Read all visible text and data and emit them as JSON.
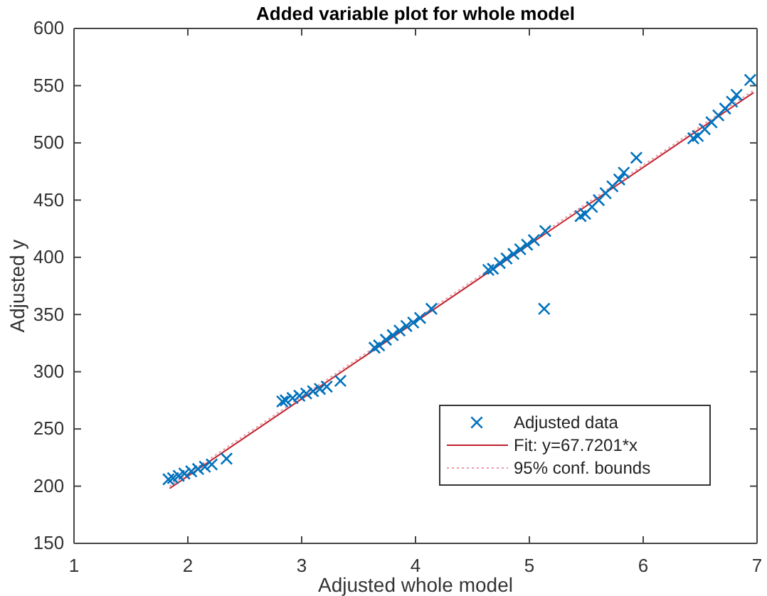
{
  "chart_data": {
    "type": "scatter",
    "title": "Added variable plot for whole model",
    "xlabel": "Adjusted whole model",
    "ylabel": "Adjusted y",
    "xlim": [
      1,
      7
    ],
    "xticks": [
      1,
      2,
      3,
      4,
      5,
      6,
      7
    ],
    "ylim": [
      150,
      600
    ],
    "yticks": [
      150,
      200,
      250,
      300,
      350,
      400,
      450,
      500,
      550,
      600
    ],
    "grid": false,
    "legend": "bottom right",
    "marker": "cross",
    "series": [
      {
        "name": "Adjusted data",
        "color": "#0072bd",
        "x": [
          1.83,
          1.87,
          1.92,
          1.97,
          2.03,
          2.09,
          2.15,
          2.21,
          2.34,
          2.83,
          2.86,
          2.92,
          2.98,
          3.04,
          3.1,
          3.16,
          3.22,
          3.34,
          3.64,
          3.68,
          3.74,
          3.8,
          3.86,
          3.92,
          3.98,
          4.04,
          4.14,
          4.64,
          4.68,
          4.74,
          4.8,
          4.86,
          4.92,
          4.98,
          5.04,
          5.14,
          5.13,
          5.45,
          5.49,
          5.55,
          5.61,
          5.67,
          5.73,
          5.79,
          5.83,
          5.94,
          6.44,
          6.48,
          6.54,
          6.6,
          6.66,
          6.72,
          6.78,
          6.82,
          6.94
        ],
        "values": [
          206,
          207,
          209,
          211,
          213,
          215,
          217,
          219,
          224,
          274,
          275,
          277,
          279,
          281,
          283,
          285,
          287,
          292,
          321,
          323,
          328,
          332,
          336,
          340,
          343,
          347,
          355,
          389,
          390,
          395,
          399,
          403,
          407,
          411,
          415,
          423,
          355,
          436,
          438,
          444,
          450,
          456,
          462,
          468,
          474,
          487,
          504,
          506,
          512,
          518,
          524,
          530,
          536,
          542,
          555
        ]
      },
      {
        "name": "Fit: y=67.7201*x",
        "color": "#c0222c",
        "type": "line",
        "marker": "none",
        "line_style": "solid",
        "x": [
          1.84,
          6.97
        ],
        "values": [
          198,
          544
        ]
      },
      {
        "name": "95% conf. bounds",
        "color": "#e89aa8",
        "type": "line",
        "marker": "none",
        "line_style": "dotted",
        "x": [
          1.84,
          6.97
        ],
        "values": [
          200,
          546
        ]
      }
    ]
  }
}
